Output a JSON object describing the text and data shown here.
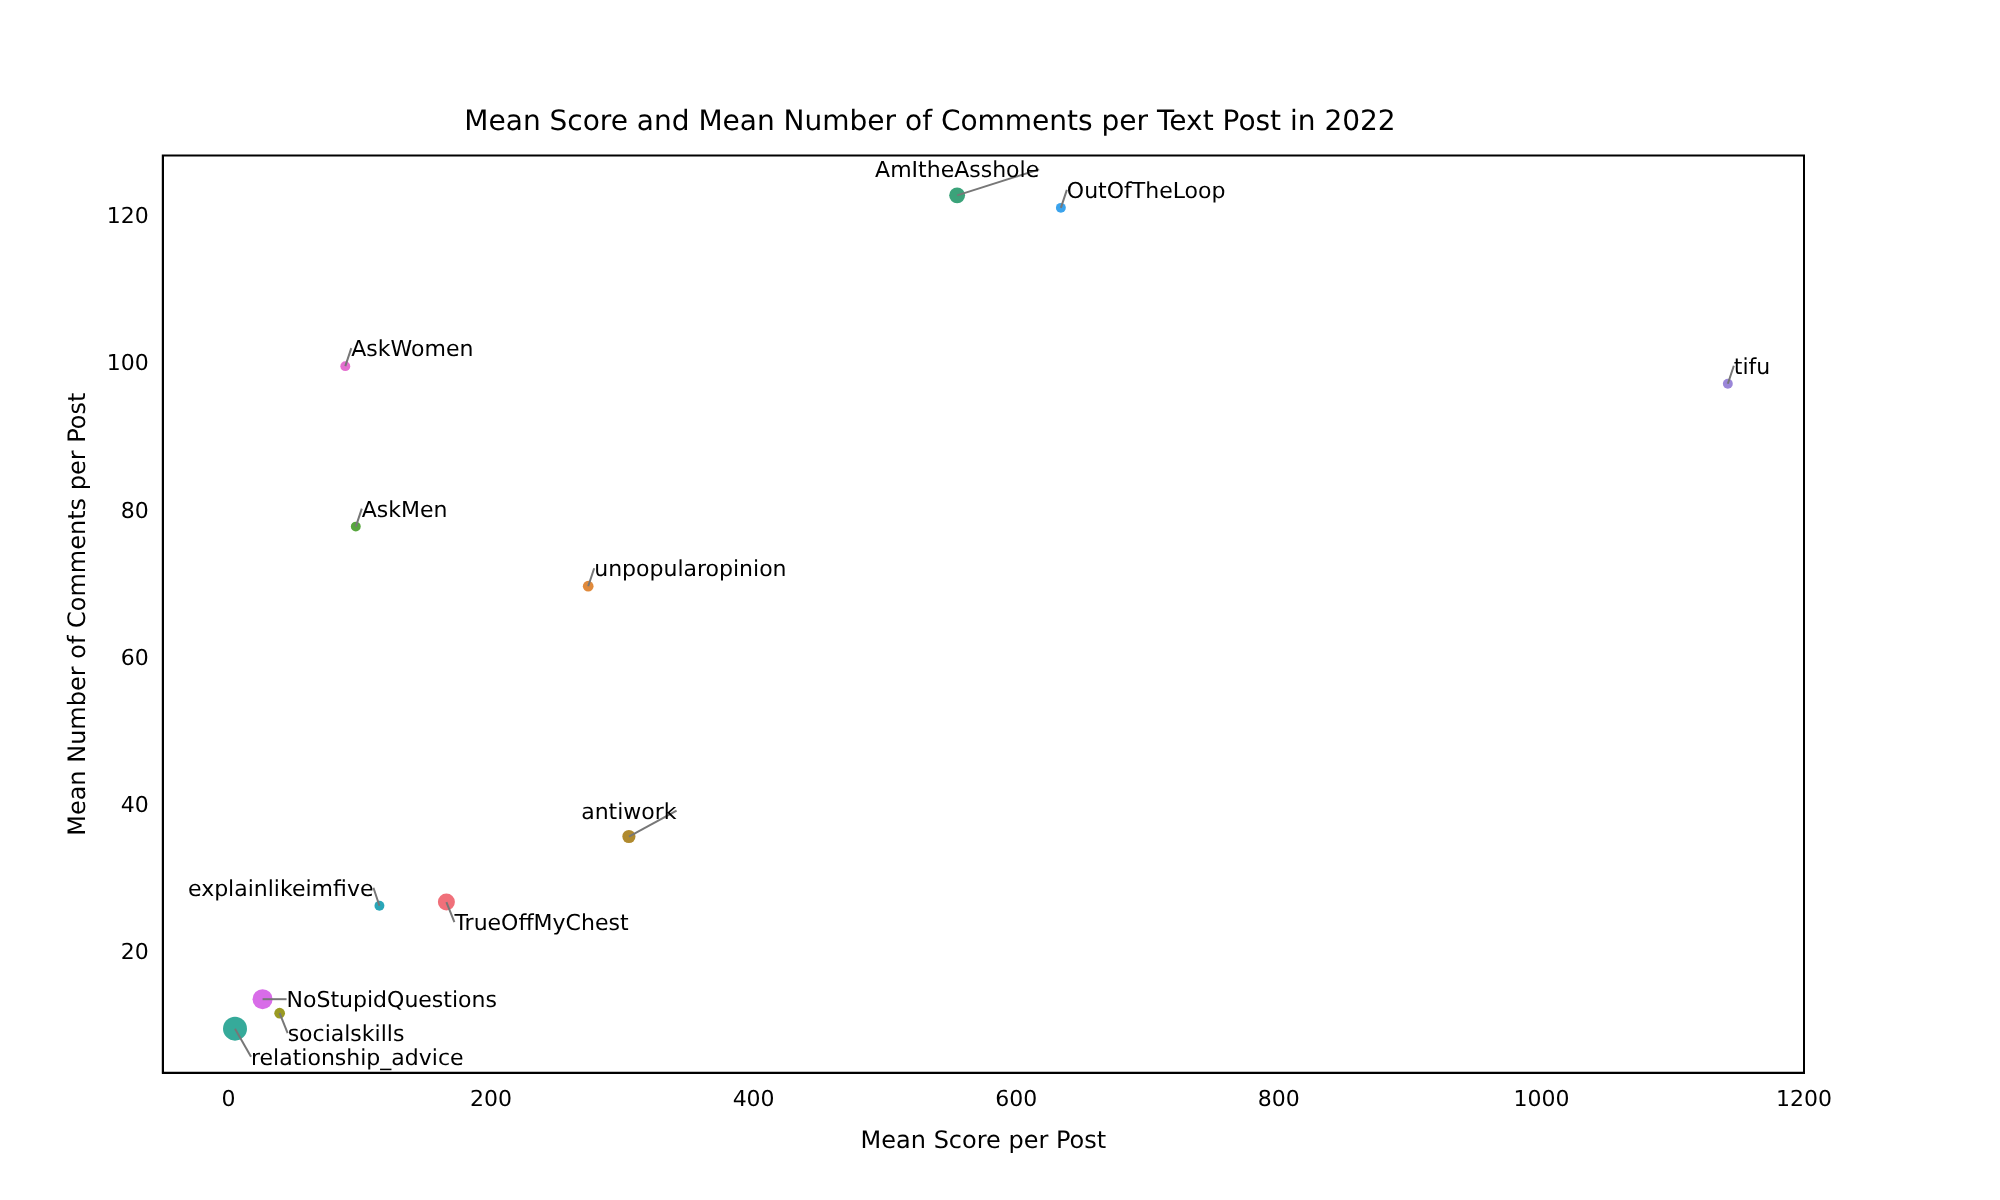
{
  "chart_data": {
    "type": "bubble",
    "title": "Mean Score and Mean Number of Comments per Text Post in 2022",
    "xlabel": "Mean Score per Post",
    "ylabel": "Mean Number of Comments per Post",
    "x": [
      555,
      634,
      89,
      1142,
      97,
      274,
      305,
      115,
      166,
      26,
      39,
      5
    ],
    "values": [
      123,
      121.3,
      99.8,
      97.4,
      78,
      69.9,
      35.9,
      26.5,
      27,
      13.8,
      11.9,
      9.8
    ],
    "sizes": [
      0.44,
      0.17,
      0.17,
      0.17,
      0.17,
      0.2,
      0.3,
      0.17,
      0.5,
      0.7,
      0.2,
      1
    ],
    "colors": [
      "#3ba37a",
      "#3ba3ec",
      "#e46fd0",
      "#9a86d8",
      "#58a63e",
      "#e08a3c",
      "#b08a2e",
      "#2aa6b8",
      "#f0707a",
      "#d86ce8",
      "#9a9a22",
      "#36aa9a"
    ],
    "xlim": [
      -50,
      1200
    ],
    "ylim": [
      3.8,
      128.4
    ],
    "xticks": [
      0,
      200,
      400,
      600,
      800,
      1000,
      1200
    ],
    "yticks": [
      20,
      40,
      60,
      80,
      100,
      120
    ],
    "grid": false,
    "legend": false,
    "annotations": [
      {
        "text": "AmItheAsshole",
        "x": 555,
        "y": 123
      },
      {
        "text": "OutOfTheLoop",
        "x": 634,
        "y": 121.3
      },
      {
        "text": "AskWomen",
        "x": 89,
        "y": 99.8
      },
      {
        "text": "tifu",
        "x": 1142,
        "y": 97.4
      },
      {
        "text": "AskMen",
        "x": 97,
        "y": 78
      },
      {
        "text": "unpopularopinion",
        "x": 274,
        "y": 69.9
      },
      {
        "text": "antiwork",
        "x": 305,
        "y": 35.9
      },
      {
        "text": "explainlikeimfive",
        "x": 115,
        "y": 26.5
      },
      {
        "text": "TrueOffMyChest",
        "x": 166,
        "y": 27
      },
      {
        "text": "NoStupidQuestions",
        "x": 26,
        "y": 13.8
      },
      {
        "text": "socialskills",
        "x": 39,
        "y": 11.9
      },
      {
        "text": "relationship_advice",
        "x": 5,
        "y": 9.8
      }
    ]
  }
}
